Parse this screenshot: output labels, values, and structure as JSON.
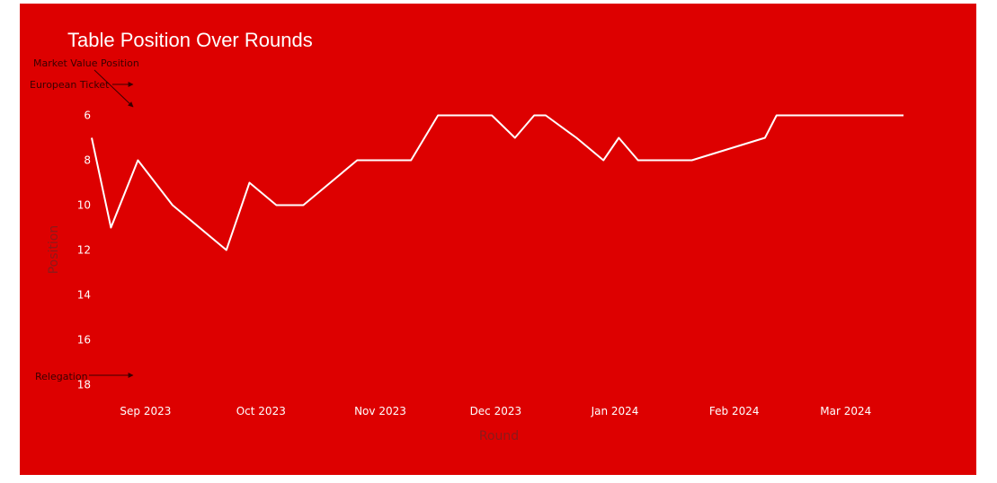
{
  "chart_data": {
    "type": "line",
    "title": "Table Position Over Rounds",
    "xlabel": "Round",
    "ylabel": "Position",
    "y_reversed": true,
    "ylim": [
      5.5,
      18.5
    ],
    "yticks": [
      6,
      8,
      10,
      12,
      14,
      16,
      18
    ],
    "xlim": [
      "2023-08-18",
      "2024-03-16"
    ],
    "xticks": [
      {
        "date": "2023-09-01",
        "label": "Sep 2023"
      },
      {
        "date": "2023-10-01",
        "label": "Oct 2023"
      },
      {
        "date": "2023-11-01",
        "label": "Nov 2023"
      },
      {
        "date": "2023-12-01",
        "label": "Dec 2023"
      },
      {
        "date": "2024-01-01",
        "label": "Jan 2024"
      },
      {
        "date": "2024-02-01",
        "label": "Feb 2024"
      },
      {
        "date": "2024-03-01",
        "label": "Mar 2024"
      }
    ],
    "grid": false,
    "line_color": "#ffffff",
    "background": "#dd0000",
    "series": [
      {
        "x": [
          "2023-08-18",
          "2023-08-23",
          "2023-08-30",
          "2023-09-08",
          "2023-09-22",
          "2023-09-28",
          "2023-10-05",
          "2023-10-12",
          "2023-10-26",
          "2023-11-09",
          "2023-11-16",
          "2023-11-30",
          "2023-12-06",
          "2023-12-11",
          "2023-12-14",
          "2023-12-22",
          "2023-12-29",
          "2024-01-02",
          "2024-01-07",
          "2024-01-21",
          "2024-02-09",
          "2024-02-12",
          "2024-03-16"
        ],
        "y": [
          7,
          11,
          8,
          10,
          12,
          9,
          10,
          10,
          8,
          8,
          6,
          6,
          7,
          6,
          6,
          7,
          8,
          7,
          8,
          8,
          7,
          6,
          6
        ]
      }
    ],
    "annotations": [
      {
        "text": "Market Value Position",
        "target": "6",
        "color": "#3a0000"
      },
      {
        "text": "European Ticket",
        "target": "6",
        "color": "#3a0000"
      },
      {
        "text": "Relegation",
        "target": "18",
        "color": "#3a0000"
      }
    ]
  }
}
